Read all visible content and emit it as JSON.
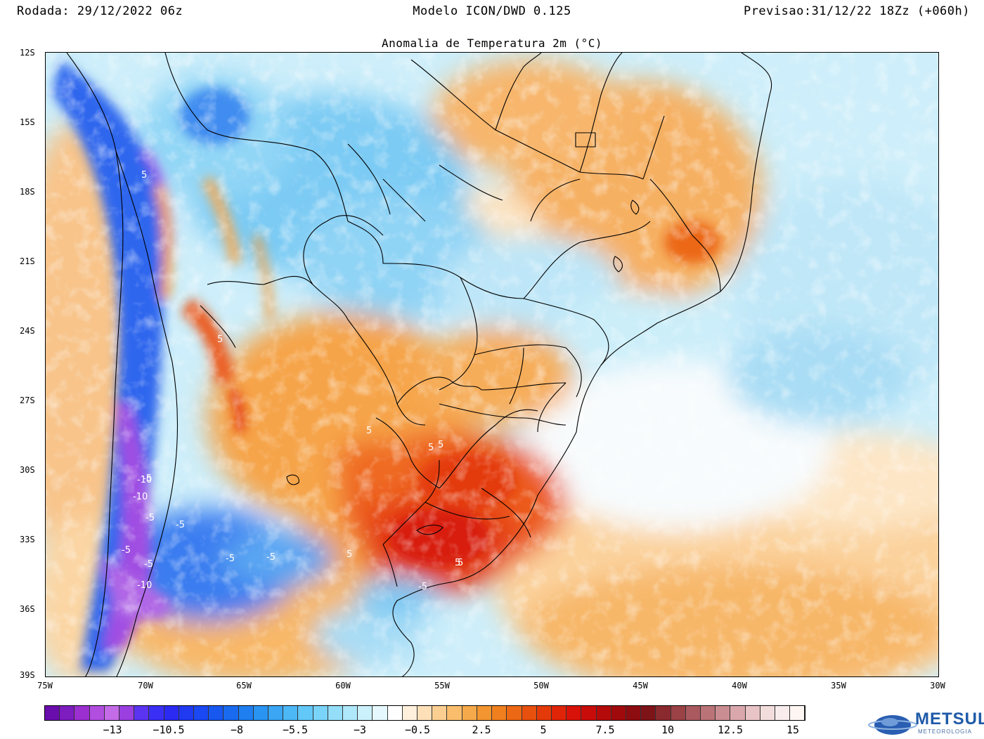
{
  "header": {
    "run": "Rodada: 29/12/2022 06z",
    "model": "Modelo ICON/DWD 0.125",
    "forecast": "Previsao:31/12/22 18Zz (+060h)"
  },
  "map": {
    "title": "Anomalia de Temperatura 2m (°C)",
    "lat_labels": [
      "12S",
      "15S",
      "18S",
      "21S",
      "24S",
      "27S",
      "30S",
      "33S",
      "36S",
      "39S"
    ],
    "lon_labels": [
      "75W",
      "70W",
      "65W",
      "60W",
      "55W",
      "50W",
      "45W",
      "40W",
      "35W",
      "30W"
    ],
    "contour_labels": [
      "5",
      "5",
      "5",
      "-5",
      "5",
      "-5",
      "-10",
      "-10",
      "-5",
      "-5",
      "-10",
      "-5",
      "-5",
      "5",
      "5",
      "5",
      "5",
      "-5",
      "-5"
    ]
  },
  "colorbar": {
    "labels": [
      "−13",
      "−10.5",
      "−8",
      "−5.5",
      "−3",
      "−0.5",
      "2.5",
      "5",
      "7.5",
      "10",
      "12.5",
      "15"
    ],
    "colors": [
      "#6a0dad",
      "#7d1cbf",
      "#9b2fd0",
      "#b14ee0",
      "#c46be8",
      "#9a3fe0",
      "#5a34f0",
      "#3a2ff5",
      "#2a2af2",
      "#1f3af0",
      "#1a48f2",
      "#1858f0",
      "#1a6af0",
      "#1f7ef0",
      "#2a94f2",
      "#3aa6f4",
      "#4cb8f6",
      "#62c8f8",
      "#7ad4f9",
      "#94def9",
      "#b0e8fb",
      "#cbf1fc",
      "#e4f8fd",
      "#ffffff",
      "#fff0dc",
      "#fde0b8",
      "#fbcf92",
      "#f9bd6c",
      "#f6a94a",
      "#f39530",
      "#f07f1e",
      "#ec6814",
      "#e8500e",
      "#e43a0a",
      "#e02408",
      "#d81208",
      "#c80c0a",
      "#b40a0a",
      "#a00a0c",
      "#8c0c10",
      "#7e1418",
      "#8a2a2e",
      "#9a4246",
      "#aa5a5e",
      "#ba7478",
      "#ca8e92",
      "#daa8ac",
      "#e8c4c6",
      "#f2dcdc",
      "#f8ecec",
      "#fdf6f2"
    ]
  },
  "logo": {
    "name": "METSUL",
    "tagline": "METEOROLOGIA"
  }
}
